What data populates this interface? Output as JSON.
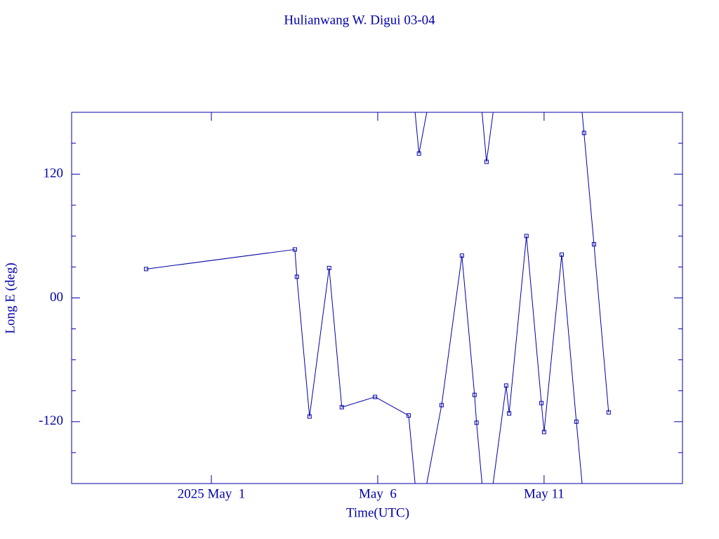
{
  "chart_data": {
    "type": "line",
    "title": "Hulianwang W. Digui 03-04",
    "x_label": "Time(UTC)",
    "y_label": "Long E (deg)",
    "color": "#0000a8",
    "x": [
      -0.96,
      3.51,
      3.57,
      3.95,
      4.54,
      4.92,
      5.92,
      6.93,
      7.24,
      7.92,
      8.53,
      8.91,
      8.97,
      9.27,
      9.86,
      9.95,
      10.47,
      10.92,
      11.0,
      11.53,
      11.97,
      12.2,
      12.5,
      12.94
    ],
    "series": [
      {
        "name": "Longitude",
        "color": "#0000a8",
        "values": [
          28,
          47,
          20.5,
          -115,
          29,
          -106,
          -96,
          -114,
          140,
          -104,
          41,
          -94,
          -121,
          132,
          -85,
          -112,
          60,
          -102,
          -130,
          42,
          -120,
          160,
          52,
          -111
        ]
      }
    ],
    "xlim": [
      -3.2,
      15.16
    ],
    "xticks": [
      {
        "value": 1,
        "label": "2025 May  1"
      },
      {
        "value": 6,
        "label": "May  6"
      },
      {
        "value": 11,
        "label": "May 11"
      }
    ],
    "ylim": [
      -180,
      180
    ],
    "yticks": [
      {
        "value": 120,
        "label": "120"
      },
      {
        "value": 0,
        "label": "00"
      },
      -120
    ],
    "yminor_ticks": [
      -150,
      -90,
      -60,
      -30,
      30,
      60,
      90,
      150
    ]
  }
}
